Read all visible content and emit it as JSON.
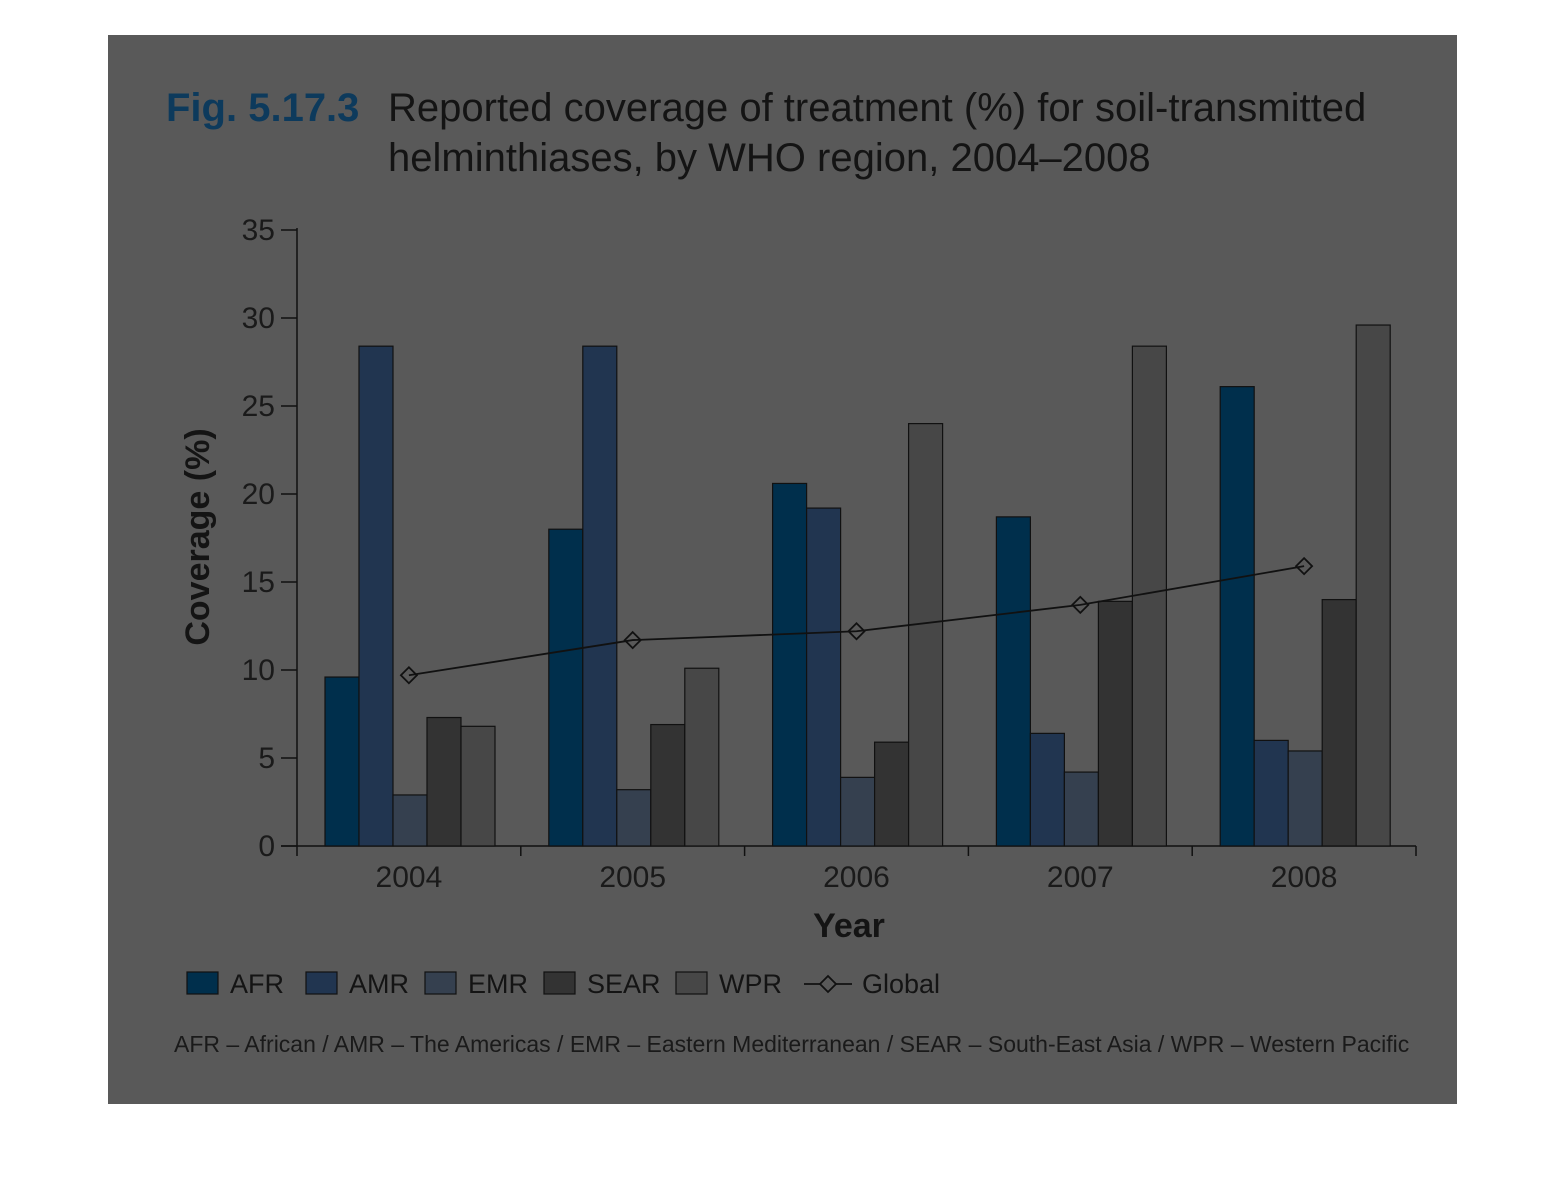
{
  "figure": {
    "number": "Fig. 5.17.3",
    "title_line1": "Reported coverage of treatment (%) for soil-transmitted",
    "title_line2": "helminthiases, by WHO region, 2004–2008",
    "footnote": "AFR – African / AMR – The Americas / EMR – Eastern Mediterranean / SEAR – South-East Asia / WPR – Western Pacific"
  },
  "colors": {
    "background": "#595959",
    "fig_number": "#0d3a5c",
    "AFR": "#002f4c",
    "AMR": "#213550",
    "EMR": "#35404f",
    "SEAR": "#333333",
    "WPR": "#474747",
    "global_line": "#111111"
  },
  "chart_data": {
    "type": "bar",
    "title": "Reported coverage of treatment (%) for soil-transmitted helminthiases, by WHO region, 2004–2008",
    "xlabel": "Year",
    "ylabel": "Coverage (%)",
    "ylim": [
      0,
      35
    ],
    "yticks": [
      0,
      5,
      10,
      15,
      20,
      25,
      30,
      35
    ],
    "categories": [
      "2004",
      "2005",
      "2006",
      "2007",
      "2008"
    ],
    "series": [
      {
        "name": "AFR",
        "values": [
          9.6,
          18.0,
          20.6,
          18.7,
          26.1
        ]
      },
      {
        "name": "AMR",
        "values": [
          28.4,
          28.4,
          19.2,
          6.4,
          6.0
        ]
      },
      {
        "name": "EMR",
        "values": [
          2.9,
          3.2,
          3.9,
          4.2,
          5.4
        ]
      },
      {
        "name": "SEAR",
        "values": [
          7.3,
          6.9,
          5.9,
          13.9,
          14.0
        ]
      },
      {
        "name": "WPR",
        "values": [
          6.8,
          10.1,
          24.0,
          28.4,
          29.6
        ]
      }
    ],
    "line_series": {
      "name": "Global",
      "values": [
        9.7,
        11.7,
        12.2,
        13.7,
        15.9
      ],
      "marker": "diamond"
    },
    "legend": {
      "placement": "bottom",
      "entries": [
        "AFR",
        "AMR",
        "EMR",
        "SEAR",
        "WPR",
        "Global"
      ]
    },
    "grid": false
  }
}
